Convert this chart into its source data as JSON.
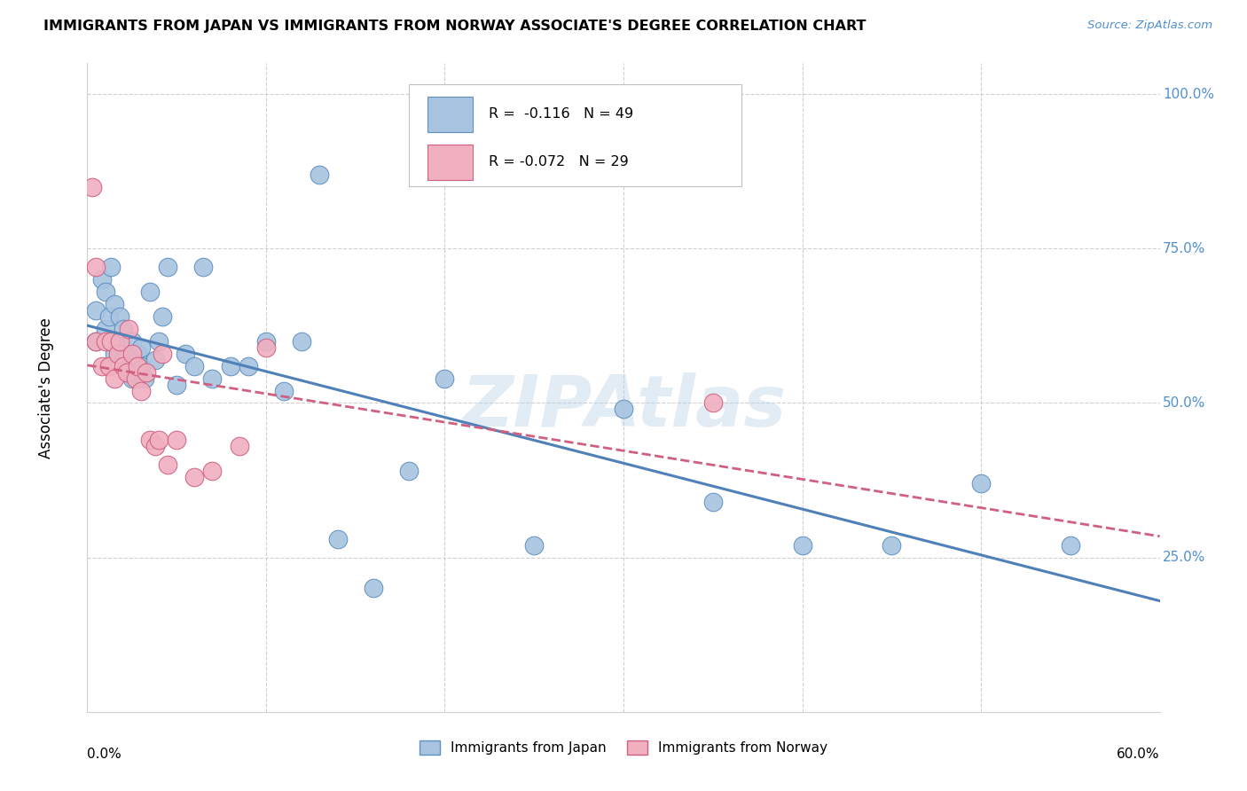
{
  "title": "IMMIGRANTS FROM JAPAN VS IMMIGRANTS FROM NORWAY ASSOCIATE'S DEGREE CORRELATION CHART",
  "source": "Source: ZipAtlas.com",
  "ylabel": "Associate's Degree",
  "xlim": [
    0.0,
    0.6
  ],
  "ylim": [
    0.0,
    1.05
  ],
  "japan_color": "#a8c4e0",
  "norway_color": "#f0b0c0",
  "japan_edge_color": "#6090c0",
  "norway_edge_color": "#d06080",
  "japan_line_color": "#5080b8",
  "norway_line_color": "#d06080",
  "watermark_color": "#b8d0e8",
  "grid_color": "#d0d0d0",
  "right_label_color": "#5090d0",
  "japan_x": [
    0.005,
    0.005,
    0.008,
    0.01,
    0.01,
    0.012,
    0.013,
    0.015,
    0.015,
    0.017,
    0.018,
    0.02,
    0.02,
    0.022,
    0.023,
    0.025,
    0.025,
    0.027,
    0.028,
    0.03,
    0.03,
    0.032,
    0.035,
    0.038,
    0.04,
    0.042,
    0.045,
    0.05,
    0.055,
    0.06,
    0.065,
    0.07,
    0.08,
    0.09,
    0.1,
    0.11,
    0.12,
    0.14,
    0.16,
    0.18,
    0.2,
    0.25,
    0.3,
    0.35,
    0.4,
    0.45,
    0.5,
    0.55,
    0.13
  ],
  "japan_y": [
    0.6,
    0.65,
    0.7,
    0.62,
    0.68,
    0.64,
    0.72,
    0.58,
    0.66,
    0.6,
    0.64,
    0.57,
    0.62,
    0.58,
    0.55,
    0.54,
    0.6,
    0.56,
    0.58,
    0.56,
    0.59,
    0.54,
    0.68,
    0.57,
    0.6,
    0.64,
    0.72,
    0.53,
    0.58,
    0.56,
    0.72,
    0.54,
    0.56,
    0.56,
    0.6,
    0.52,
    0.6,
    0.28,
    0.2,
    0.39,
    0.54,
    0.27,
    0.49,
    0.34,
    0.27,
    0.27,
    0.37,
    0.27,
    0.87
  ],
  "norway_x": [
    0.003,
    0.005,
    0.005,
    0.008,
    0.01,
    0.012,
    0.013,
    0.015,
    0.017,
    0.018,
    0.02,
    0.022,
    0.023,
    0.025,
    0.027,
    0.028,
    0.03,
    0.033,
    0.035,
    0.038,
    0.04,
    0.042,
    0.045,
    0.05,
    0.06,
    0.07,
    0.085,
    0.1,
    0.35
  ],
  "norway_y": [
    0.85,
    0.6,
    0.72,
    0.56,
    0.6,
    0.56,
    0.6,
    0.54,
    0.58,
    0.6,
    0.56,
    0.55,
    0.62,
    0.58,
    0.54,
    0.56,
    0.52,
    0.55,
    0.44,
    0.43,
    0.44,
    0.58,
    0.4,
    0.44,
    0.38,
    0.39,
    0.43,
    0.59,
    0.5
  ]
}
